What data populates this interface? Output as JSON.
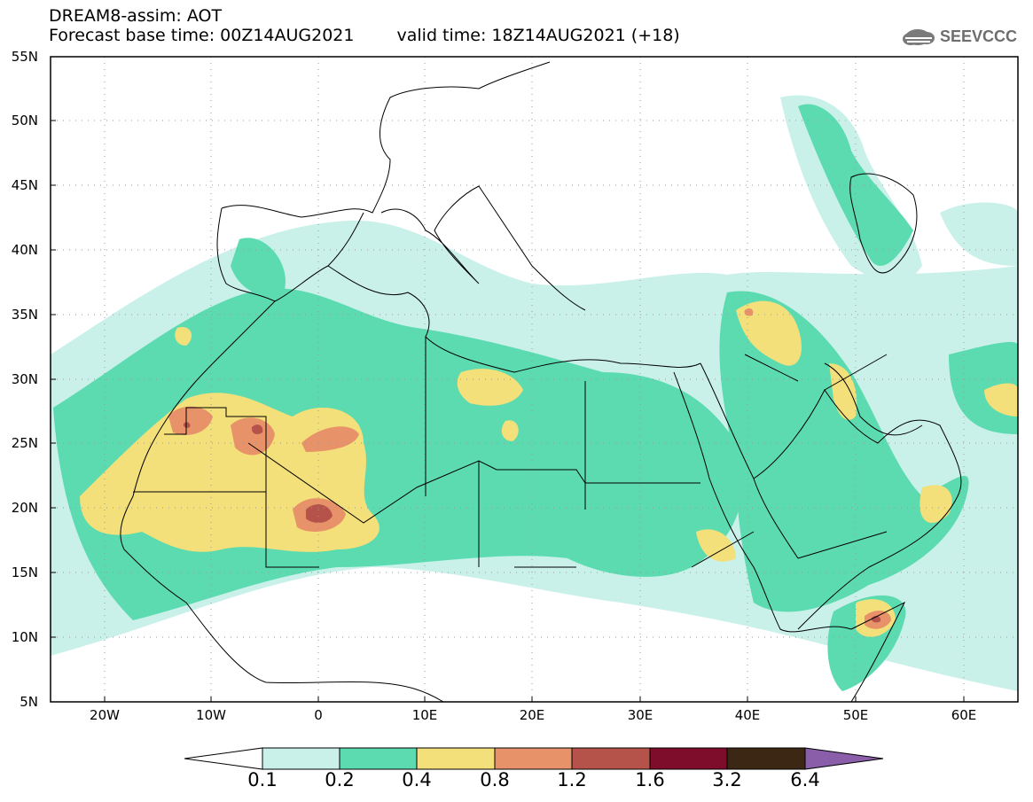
{
  "header": {
    "line1": "DREAM8-assim: AOT",
    "base_time": "Forecast base time: 00Z14AUG2021",
    "valid_time": "valid time: 18Z14AUG2021 (+18)",
    "logo_text": "SEEVCCC"
  },
  "map": {
    "lat_labels": [
      "55N",
      "50N",
      "45N",
      "40N",
      "35N",
      "30N",
      "25N",
      "20N",
      "15N",
      "10N",
      "5N"
    ],
    "lon_labels": [
      "20W",
      "10W",
      "0",
      "10E",
      "20E",
      "30E",
      "40E",
      "50E",
      "60E"
    ],
    "extent": {
      "lon": [
        -25,
        65
      ],
      "lat": [
        5,
        55
      ]
    },
    "grid": "dotted"
  },
  "legend": {
    "labels": [
      "0.1",
      "0.2",
      "0.4",
      "0.8",
      "1.2",
      "1.6",
      "3.2",
      "6.4"
    ],
    "colors": [
      "#ffffff",
      "#c9f1ea",
      "#5ddbb0",
      "#f3e07a",
      "#e8926a",
      "#b5534a",
      "#7d0d2a",
      "#3b2714",
      "#8a5ea9"
    ]
  }
}
